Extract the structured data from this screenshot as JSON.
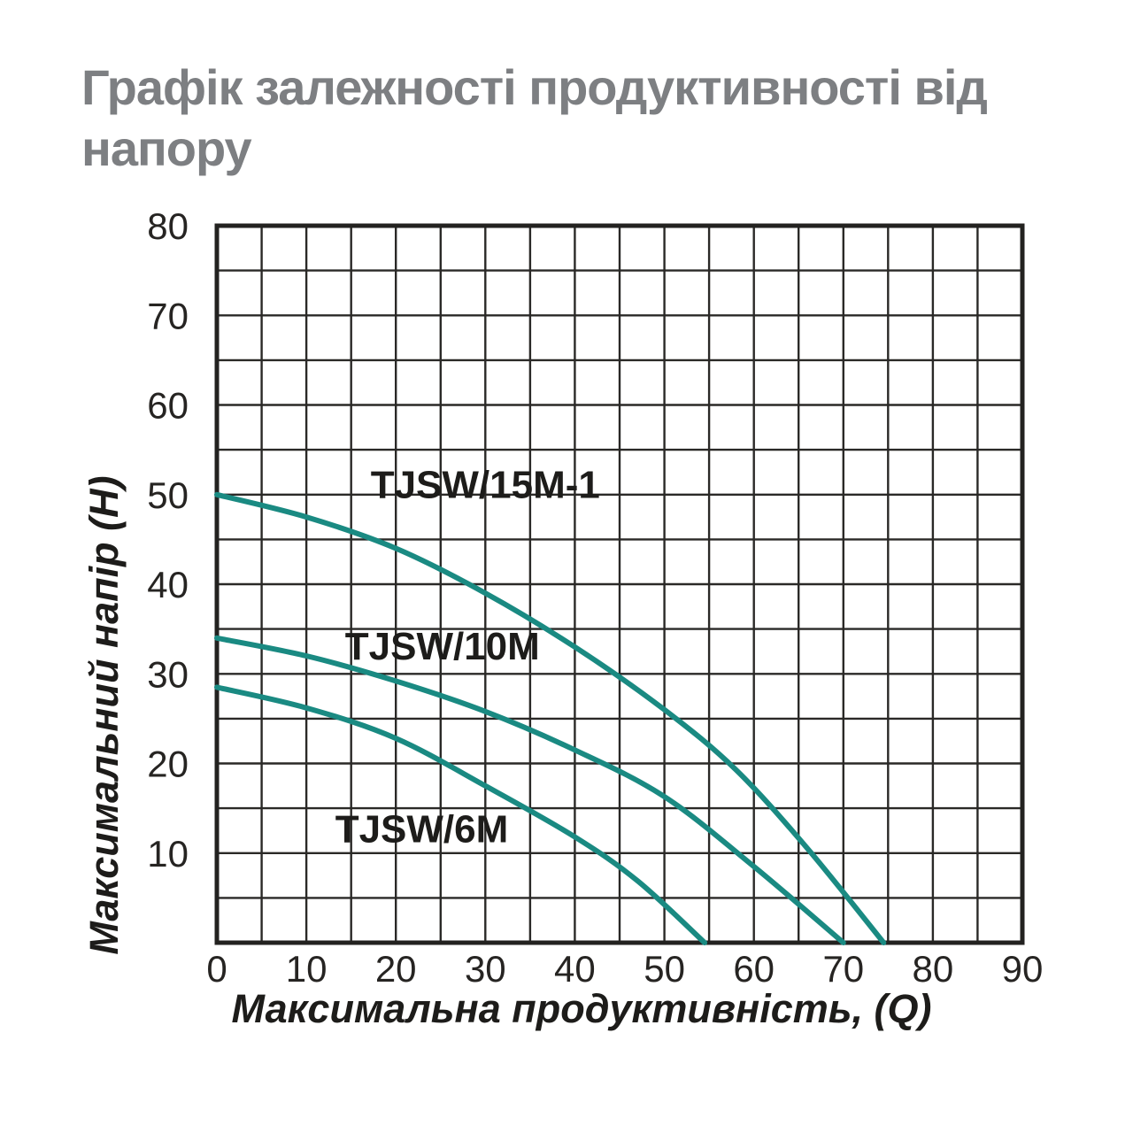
{
  "title": "Графік залежності продуктивності від напору",
  "chart_data": {
    "type": "line",
    "title": "Графік залежності продуктивності від напору",
    "xlabel": "Максимальна продуктивність, (Q)",
    "ylabel": "Максимальний напір (H)",
    "xlim": [
      0,
      90
    ],
    "ylim": [
      0,
      80
    ],
    "grid": "on",
    "grid_step": 5,
    "x_ticks": [
      0,
      10,
      20,
      30,
      40,
      50,
      60,
      70,
      80,
      90
    ],
    "y_ticks": [
      10,
      20,
      30,
      40,
      50,
      60,
      70,
      80
    ],
    "legend_position": "inline-labels",
    "series": [
      {
        "name": "TJSW/15M-1",
        "points": [
          [
            0,
            50
          ],
          [
            10,
            47.5
          ],
          [
            20,
            44
          ],
          [
            30,
            39
          ],
          [
            40,
            33
          ],
          [
            50,
            26
          ],
          [
            58,
            19.3
          ],
          [
            66,
            10.5
          ],
          [
            74.5,
            0
          ]
        ],
        "label_anchor": {
          "q": 30.0,
          "h": 51.1
        }
      },
      {
        "name": "TJSW/10M",
        "points": [
          [
            0,
            34
          ],
          [
            10,
            32
          ],
          [
            20,
            29.2
          ],
          [
            30,
            25.8
          ],
          [
            40,
            21.5
          ],
          [
            50,
            16.3
          ],
          [
            60,
            8.5
          ],
          [
            70,
            0
          ]
        ],
        "label_anchor": {
          "q": 25.2,
          "h": 33.1
        }
      },
      {
        "name": "TJSW/6M",
        "points": [
          [
            0,
            28.5
          ],
          [
            10,
            26.2
          ],
          [
            20,
            22.8
          ],
          [
            30,
            17.5
          ],
          [
            40,
            11.8
          ],
          [
            47,
            6.9
          ],
          [
            54.5,
            0
          ]
        ],
        "label_anchor": {
          "q": 22.9,
          "h": 12.7
        }
      }
    ],
    "colors": {
      "curve": "#1a8a82",
      "grid_line": "#2a2927",
      "plot_border": "#232220",
      "tick_text": "#262422",
      "curve_label_text": "#1d1c1a",
      "title_text": "#7d7f82",
      "background": "#ffffff"
    }
  }
}
